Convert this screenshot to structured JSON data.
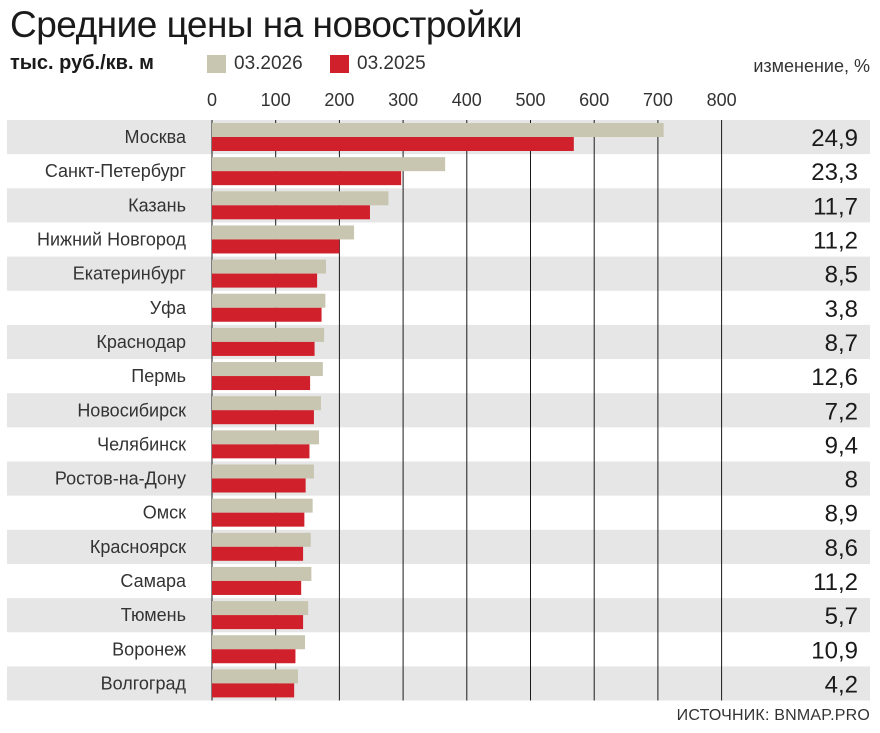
{
  "header": {
    "title": "Средние цены на новостройки",
    "units": "тыс. руб./кв. м",
    "change_label": "изменение, %"
  },
  "footer": {
    "source": "ИСТОЧНИК: BNMAP.PRO"
  },
  "colors": {
    "series_2026": "#c8c6b1",
    "series_2025": "#d0202b",
    "row_band": "#e6e6e6",
    "gridline": "#1a1a1a"
  },
  "chart_data": {
    "type": "bar",
    "orientation": "horizontal",
    "categories": [
      "Москва",
      "Санкт-Петербург",
      "Казань",
      "Нижний Новгород",
      "Екатеринбург",
      "Уфа",
      "Краснодар",
      "Пермь",
      "Новосибирск",
      "Челябинск",
      "Ростов-на-Дону",
      "Омск",
      "Красноярск",
      "Самара",
      "Тюмень",
      "Воронеж",
      "Волгоград"
    ],
    "series": [
      {
        "name": "03.2026",
        "values": [
          709,
          366,
          277,
          223,
          179,
          178,
          176,
          174,
          171,
          168,
          160,
          158,
          155,
          156,
          151,
          146,
          135
        ]
      },
      {
        "name": "03.2025",
        "values": [
          568,
          297,
          248,
          200,
          165,
          172,
          161,
          154,
          160,
          153,
          147,
          145,
          143,
          140,
          143,
          131,
          129
        ]
      }
    ],
    "change_pct": [
      "24,9",
      "23,3",
      "11,7",
      "11,2",
      "8,5",
      "3,8",
      "8,7",
      "12,6",
      "7,2",
      "9,4",
      "8",
      "8,9",
      "8,6",
      "11,2",
      "5,7",
      "10,9",
      "4,2"
    ],
    "xlim": [
      0,
      800
    ],
    "xticks": [
      "0",
      "100",
      "200",
      "300",
      "400",
      "500",
      "600",
      "700",
      "800"
    ],
    "grid": true,
    "legend_position": "top"
  }
}
